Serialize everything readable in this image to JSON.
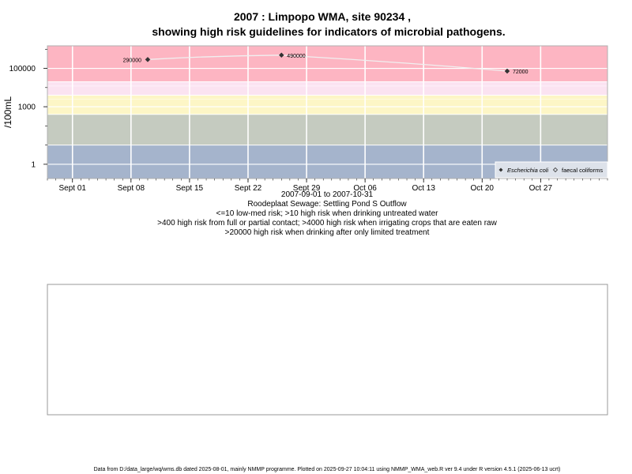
{
  "chart_data": {
    "type": "scatter",
    "title_line1": "2007 : Limpopo WMA, site 90234 ,",
    "title_line2": "showing high risk guidelines for indicators of microbial pathogens.",
    "ylabel": "/100mL",
    "y_scale": "log10",
    "ylim": [
      0.18,
      1500000
    ],
    "xlim": [
      "2007-08-29",
      "2007-11-04"
    ],
    "x_ticks": [
      {
        "date": "2007-09-01",
        "label": "Sept 01"
      },
      {
        "date": "2007-09-08",
        "label": "Sept 08"
      },
      {
        "date": "2007-09-15",
        "label": "Sept 15"
      },
      {
        "date": "2007-09-22",
        "label": "Sept 22"
      },
      {
        "date": "2007-09-29",
        "label": "Sept 29"
      },
      {
        "date": "2007-10-06",
        "label": "Oct 06"
      },
      {
        "date": "2007-10-13",
        "label": "Oct 13"
      },
      {
        "date": "2007-10-20",
        "label": "Oct 20"
      },
      {
        "date": "2007-10-27",
        "label": "Oct 27"
      }
    ],
    "y_ticks": [
      {
        "value": 1,
        "label": "1"
      },
      {
        "value": 1000,
        "label": "1000"
      },
      {
        "value": 100000,
        "label": "100000"
      }
    ],
    "bands": [
      {
        "from": 0.18,
        "to": 10,
        "color": "#a5b4cc"
      },
      {
        "from": 10,
        "to": 400,
        "color": "#c5cbc0"
      },
      {
        "from": 400,
        "to": 4000,
        "color": "#fdf6c6"
      },
      {
        "from": 4000,
        "to": 20000,
        "color": "#fbe3f1"
      },
      {
        "from": 20000,
        "to": 1500000,
        "color": "#fdb5c2"
      }
    ],
    "series": [
      {
        "name": "Escherichia coli",
        "marker": "filled-diamond",
        "color": "#333333",
        "points": [
          {
            "date": "2007-09-10",
            "value": 290000,
            "label": "290000"
          },
          {
            "date": "2007-09-26",
            "value": 490000,
            "label": "490000"
          },
          {
            "date": "2007-10-23",
            "value": 72000,
            "label": "72000"
          }
        ]
      },
      {
        "name": "faecal coliforms",
        "marker": "open-diamond",
        "color": "#333333",
        "points": []
      }
    ],
    "trend_color": "#f0f0f0",
    "grid": true,
    "legend_position": "bottom-right",
    "subtitle_lines": [
      "2007-09-01 to 2007-10-31",
      "Roodeplaat Sewage: Settling Pond S Outflow",
      "<=10 low-med risk; >10 high risk when drinking untreated water",
      ">400 high risk from full or partial contact; >4000 high risk when irrigating crops that are eaten raw",
      ">20000 high risk when drinking after only limited treatment"
    ]
  },
  "footer": "Data from D:/data_large/wq/wms.db dated 2025-08-01, mainly NMMP programme. Plotted on 2025-09-27 10:04:11 using NMMP_WMA_web.R ver 9.4 under R version 4.5.1 (2025-06-13 ucrt)"
}
